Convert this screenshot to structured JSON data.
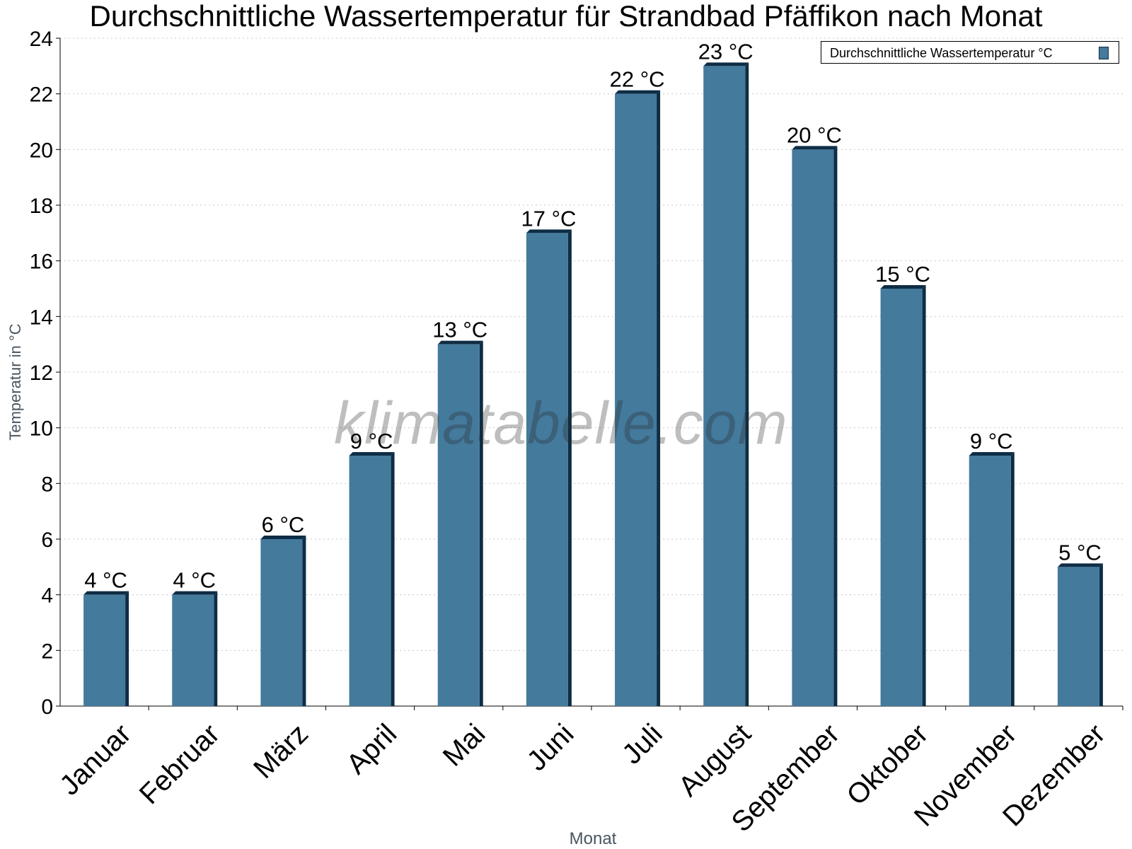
{
  "chart_data": {
    "type": "bar",
    "title": "Durchschnittliche Wassertemperatur für Strandbad Pfäffikon nach Monat",
    "xlabel": "Monat",
    "ylabel": "Temperatur in °C",
    "categories": [
      "Januar",
      "Februar",
      "März",
      "April",
      "Mai",
      "Juni",
      "Juli",
      "August",
      "September",
      "Oktober",
      "November",
      "Dezember"
    ],
    "series": [
      {
        "name": "Durchschnittliche Wassertemperatur °C",
        "values": [
          4,
          4,
          6,
          9,
          13,
          17,
          22,
          23,
          20,
          15,
          9,
          5
        ],
        "labels": [
          "4 °C",
          "4 °C",
          "6 °C",
          "9 °C",
          "13 °C",
          "17 °C",
          "22 °C",
          "23 °C",
          "20 °C",
          "15 °C",
          "9 °C",
          "5 °C"
        ]
      }
    ],
    "ylim": [
      0,
      24
    ],
    "yticks": [
      0,
      2,
      4,
      6,
      8,
      10,
      12,
      14,
      16,
      18,
      20,
      22,
      24
    ],
    "grid": "horizontal dotted",
    "legend_position": "top-right",
    "watermark": "klimatabelle.com",
    "colors": {
      "bar": "#447a9c",
      "bar_edge": "#0e2d44",
      "grid": "#c8c8c8"
    }
  }
}
